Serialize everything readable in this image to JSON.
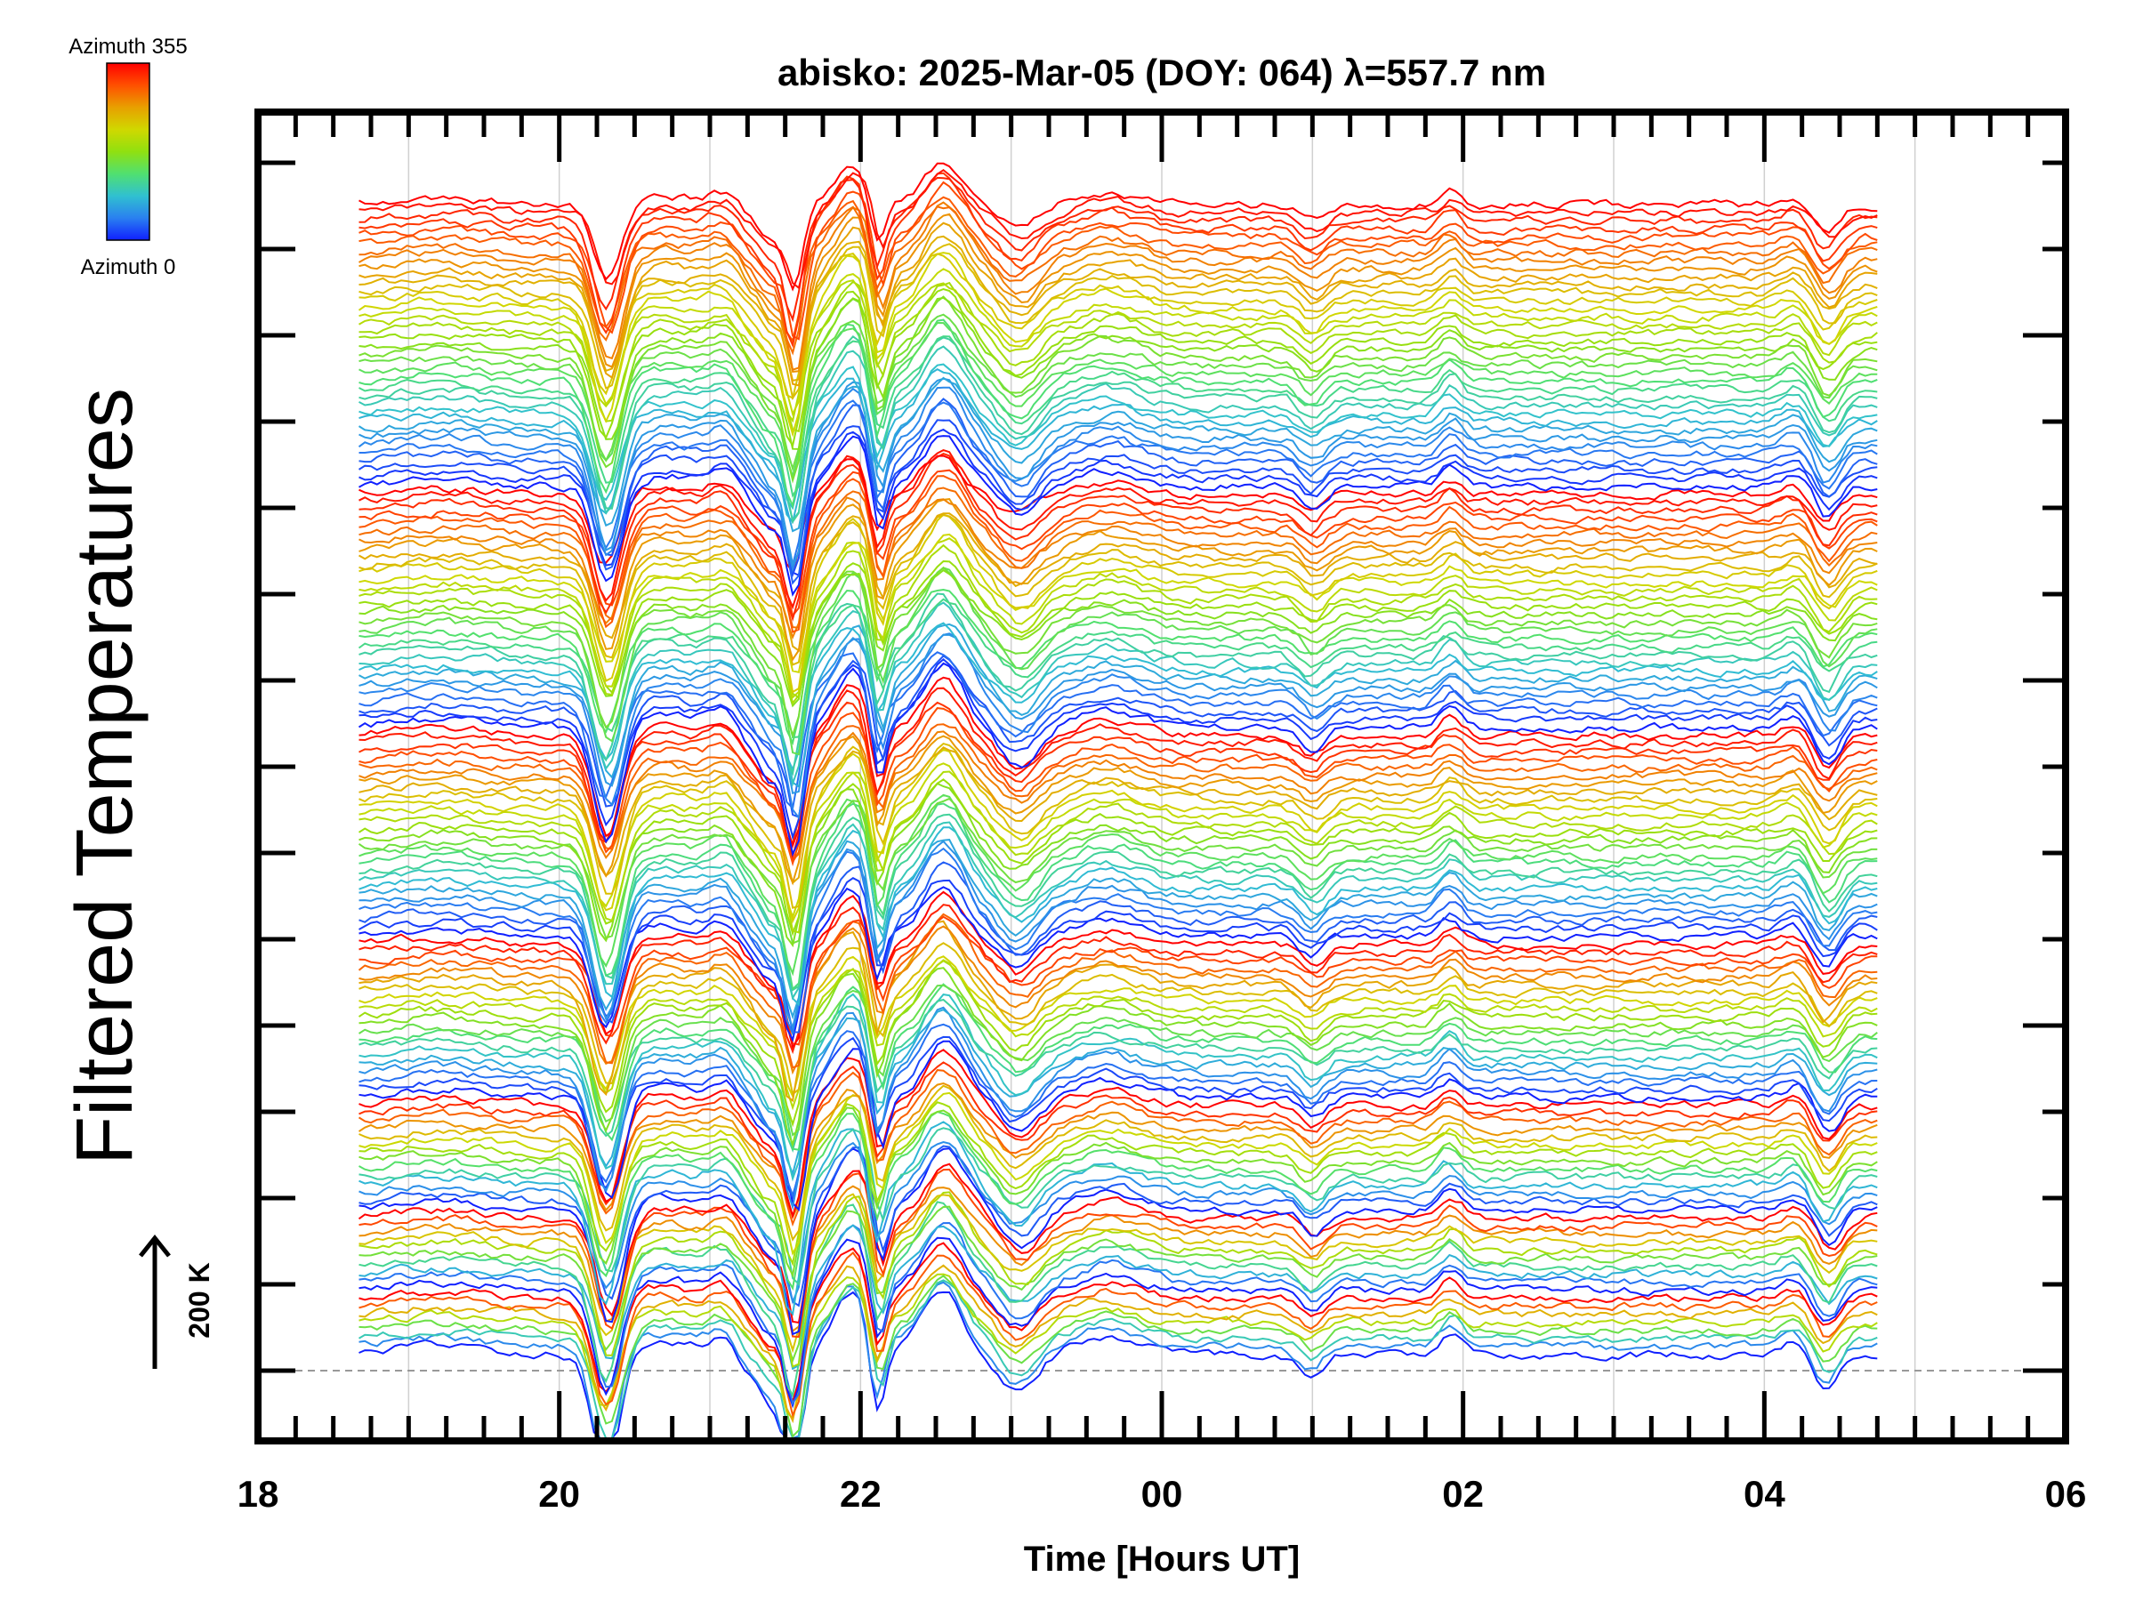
{
  "chart_data": {
    "type": "line",
    "title": "abisko: 2025-Mar-05 (DOY: 064) λ=557.7 nm",
    "xlabel": "Time [Hours UT]",
    "ylabel": "Filtered Temperatures",
    "xlim": [
      18,
      30
    ],
    "x_tick_labels": [
      "18",
      "20",
      "22",
      "00",
      "02",
      "04",
      "06"
    ],
    "x_tick_values": [
      18,
      20,
      22,
      24,
      26,
      28,
      30
    ],
    "x_minor_step_hours": 0.25,
    "data_time_range": [
      18.67,
      28.75
    ],
    "scale_bar_label": "200 K",
    "scale_bar_kelvin": 200,
    "trace_spacing_kelvin": 12.3,
    "group_sizes_bottom_to_top": [
      8,
      10,
      14,
      20,
      26,
      30,
      36
    ],
    "colorbar": {
      "label_top": "Azimuth 355",
      "label_bottom": "Azimuth 0",
      "range": [
        0,
        355
      ],
      "colors": [
        "#1020ff",
        "#2a80f0",
        "#30c0d0",
        "#50e070",
        "#90e010",
        "#d0d800",
        "#e8a000",
        "#ff5000",
        "#ff0000"
      ]
    },
    "features_kelvin": [
      {
        "t": 19.2,
        "amp": 10,
        "width": 0.3
      },
      {
        "t": 20.32,
        "amp": -140,
        "width": 0.09
      },
      {
        "t": 20.7,
        "amp": 15,
        "width": 0.2
      },
      {
        "t": 21.1,
        "amp": 20,
        "width": 0.1
      },
      {
        "t": 21.25,
        "amp": -20,
        "width": 0.07
      },
      {
        "t": 21.4,
        "amp": -55,
        "width": 0.07
      },
      {
        "t": 21.56,
        "amp": -150,
        "width": 0.06
      },
      {
        "t": 21.95,
        "amp": 70,
        "width": 0.12
      },
      {
        "t": 22.12,
        "amp": -90,
        "width": 0.05
      },
      {
        "t": 22.55,
        "amp": 75,
        "width": 0.13
      },
      {
        "t": 23.05,
        "amp": -45,
        "width": 0.12
      },
      {
        "t": 23.65,
        "amp": 22,
        "width": 0.2
      },
      {
        "t": 25.0,
        "amp": -28,
        "width": 0.08
      },
      {
        "t": 25.92,
        "amp": 25,
        "width": 0.07
      },
      {
        "t": 28.2,
        "amp": 15,
        "width": 0.08
      },
      {
        "t": 28.42,
        "amp": -45,
        "width": 0.08
      }
    ],
    "grid": "vertical hourly",
    "reference_line": "dashed baseline"
  }
}
